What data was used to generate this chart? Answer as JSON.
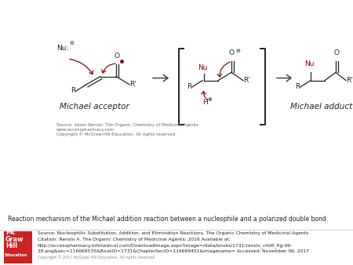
{
  "bg_color": "#ffffff",
  "fig_width": 4.5,
  "fig_height": 3.38,
  "dpi": 100,
  "caption_text": "Reaction mechanism of the Michael addition reaction between a nucleophile and a polarized double bond.",
  "source_text_line1": "Source: Nucleophilic Substitution, Addition, and Elimination Reactions, The Organic Chemistry of Medicinal Agents",
  "source_text_line2": "Citation: Renslo A. The Organic Chemistry of Medicinal Agents; 2016 Available at:",
  "source_text_line3": "http://accesspharmacy.mhmedical.com/DownloadImage.aspx?image=/data/books/1731/renslo_ch06_fig-06-",
  "source_text_line4": "28.png&sec=116669535&BookID=1731&ChapterSecID=116669451&imagename= Accessed: November 06, 2017",
  "source_text_line5": "Copyright © 2017 McGraw-Hill Education. All rights reserved",
  "inner_source_line1": "Source: Adam Renslo: The Organic Chemistry of Medicinal Agents",
  "inner_source_line2": "www.accesspharmacy.com",
  "inner_source_line3": "Copyright © McGraw-Hill Education. All rights reserved.",
  "michael_acceptor_label": "Michael acceptor",
  "michael_adduct_label": "Michael adduct",
  "dark_red": "#8b0000",
  "arrow_color": "#444444",
  "text_color": "#222222",
  "label_fontsize": 7.5,
  "inner_source_fontsize": 4.0,
  "footer_fontsize": 4.3,
  "caption_fontsize": 5.5,
  "mcgraw_box_color": "#cc2222"
}
